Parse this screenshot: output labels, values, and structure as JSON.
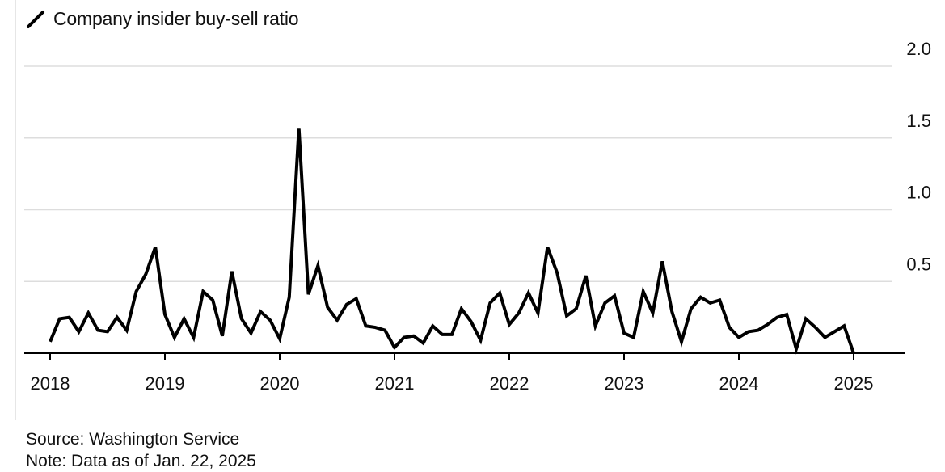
{
  "chart_data": {
    "type": "line",
    "title": "",
    "series": [
      {
        "name": "Company insider buy-sell ratio",
        "color": "#000000",
        "x": [
          2018.0,
          2018.083,
          2018.167,
          2018.25,
          2018.333,
          2018.417,
          2018.5,
          2018.583,
          2018.667,
          2018.75,
          2018.833,
          2018.917,
          2019.0,
          2019.083,
          2019.167,
          2019.25,
          2019.333,
          2019.417,
          2019.5,
          2019.583,
          2019.667,
          2019.75,
          2019.833,
          2019.917,
          2020.0,
          2020.083,
          2020.167,
          2020.25,
          2020.333,
          2020.417,
          2020.5,
          2020.583,
          2020.667,
          2020.75,
          2020.833,
          2020.917,
          2021.0,
          2021.083,
          2021.167,
          2021.25,
          2021.333,
          2021.417,
          2021.5,
          2021.583,
          2021.667,
          2021.75,
          2021.833,
          2021.917,
          2022.0,
          2022.083,
          2022.167,
          2022.25,
          2022.333,
          2022.417,
          2022.5,
          2022.583,
          2022.667,
          2022.75,
          2022.833,
          2022.917,
          2023.0,
          2023.083,
          2023.167,
          2023.25,
          2023.333,
          2023.417,
          2023.5,
          2023.583,
          2023.667,
          2023.75,
          2023.833,
          2023.917,
          2024.0,
          2024.083,
          2024.167,
          2024.25,
          2024.333,
          2024.417,
          2024.5,
          2024.583,
          2024.667,
          2024.75,
          2024.833,
          2024.917,
          2025.0
        ],
        "values": [
          0.08,
          0.24,
          0.25,
          0.15,
          0.28,
          0.16,
          0.15,
          0.25,
          0.16,
          0.43,
          0.55,
          0.74,
          0.27,
          0.11,
          0.24,
          0.11,
          0.43,
          0.37,
          0.12,
          0.57,
          0.24,
          0.14,
          0.29,
          0.23,
          0.1,
          0.39,
          1.57,
          0.41,
          0.61,
          0.32,
          0.23,
          0.34,
          0.38,
          0.19,
          0.18,
          0.16,
          0.04,
          0.11,
          0.12,
          0.07,
          0.19,
          0.13,
          0.13,
          0.31,
          0.22,
          0.09,
          0.35,
          0.42,
          0.2,
          0.28,
          0.42,
          0.28,
          0.74,
          0.56,
          0.26,
          0.31,
          0.54,
          0.19,
          0.35,
          0.4,
          0.14,
          0.11,
          0.43,
          0.28,
          0.64,
          0.29,
          0.08,
          0.31,
          0.39,
          0.35,
          0.37,
          0.18,
          0.11,
          0.15,
          0.16,
          0.2,
          0.25,
          0.27,
          0.03,
          0.24,
          0.18,
          0.11,
          0.15,
          0.19,
          0.0
        ]
      }
    ],
    "xlabel": "",
    "ylabel": "",
    "xlim": [
      2018.0,
      2025.0
    ],
    "ylim": [
      0.0,
      2.0
    ],
    "y_ticks": [
      0.5,
      1.0,
      1.5,
      2.0
    ],
    "y_tick_labels": [
      "0.5",
      "1.0",
      "1.5",
      "2.0"
    ],
    "x_ticks": [
      2018,
      2019,
      2020,
      2021,
      2022,
      2023,
      2024,
      2025
    ],
    "x_tick_labels": [
      "2018",
      "2019",
      "2020",
      "2021",
      "2022",
      "2023",
      "2024",
      "2025"
    ],
    "grid": "horizontal",
    "y_axis_side": "right",
    "legend_position": "top-left"
  },
  "legend": {
    "label": "Company insider buy-sell ratio"
  },
  "footer": {
    "source": "Source: Washington Service",
    "note": "Note: Data as of Jan. 22, 2025"
  },
  "colors": {
    "line": "#000000",
    "grid": "#dddddd",
    "axis": "#000000",
    "text": "#111111"
  }
}
